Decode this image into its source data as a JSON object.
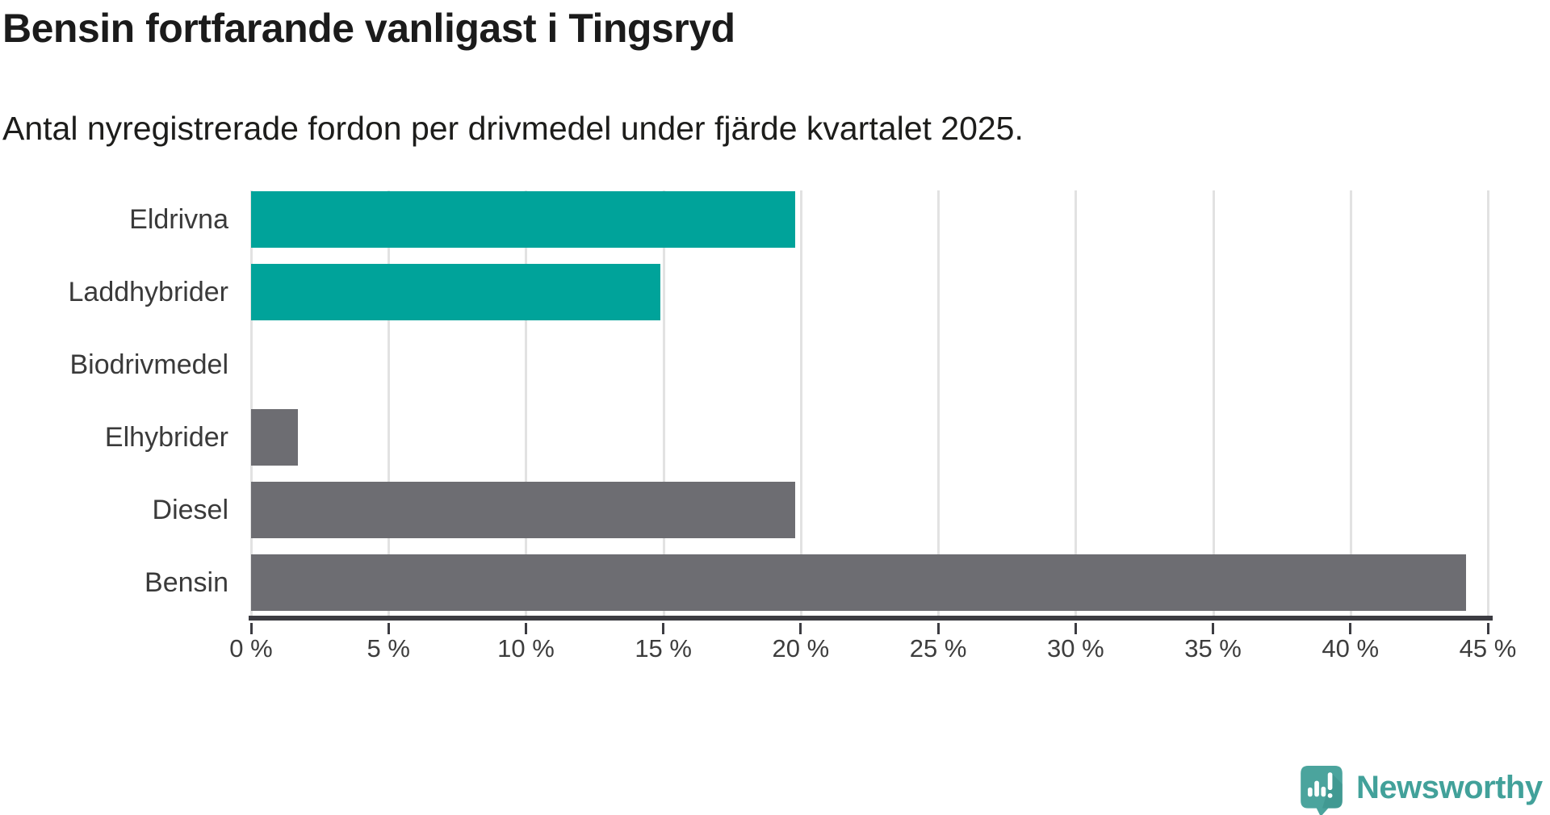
{
  "header": {
    "title": "Bensin fortfarande vanligast i Tingsryd",
    "subtitle": "Antal nyregistrerade fordon per drivmedel under fjärde kvartalet 2025."
  },
  "chart_data": {
    "type": "bar",
    "orientation": "horizontal",
    "title": "Bensin fortfarande vanligast i Tingsryd",
    "subtitle": "Antal nyregistrerade fordon per drivmedel under fjärde kvartalet 2025.",
    "categories": [
      "Eldrivna",
      "Laddhybrider",
      "Biodrivmedel",
      "Elhybrider",
      "Diesel",
      "Bensin"
    ],
    "values": [
      19.8,
      14.9,
      0,
      1.7,
      19.8,
      44.2
    ],
    "unit": "%",
    "xlim": [
      0,
      45
    ],
    "x_ticks": [
      0,
      5,
      10,
      15,
      20,
      25,
      30,
      35,
      40,
      45
    ],
    "x_tick_labels": [
      "0 %",
      "5 %",
      "10 %",
      "15 %",
      "20 %",
      "25 %",
      "30 %",
      "35 %",
      "40 %",
      "45 %"
    ],
    "bar_colors": [
      "#00a39a",
      "#00a39a",
      "#00a39a",
      "#6d6d72",
      "#6d6d72",
      "#6d6d72"
    ],
    "grid": true,
    "legend": false,
    "colors": {
      "electric_teal": "#00a39a",
      "fossil_gray": "#6d6d72",
      "gridline": "#e2e2e2",
      "axis": "#3c3c42"
    }
  },
  "footer": {
    "brand": "Newsworthy",
    "brand_color": "#42a19a",
    "logo_icon": "newsworthy-bubble-chart-icon"
  }
}
